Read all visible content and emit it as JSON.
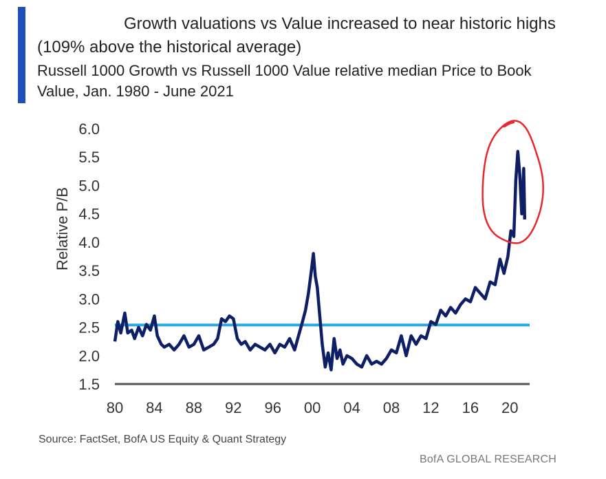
{
  "header": {
    "title": "Growth valuations vs Value increased to near historic highs (109% above the historical average)",
    "subtitle": "Russell 1000 Growth vs Russell 1000 Value relative median Price to Book Value, Jan. 1980 - June 2021"
  },
  "footer": {
    "source": "Source: FactSet, BofA US Equity & Quant Strategy",
    "brand": "BofA GLOBAL RESEARCH"
  },
  "colors": {
    "accent_bar": "#1f4fb8",
    "series_line": "#0f1f66",
    "average_line": "#29a9e0",
    "axis_line": "#555555",
    "annotation_circle": "#e8262b"
  },
  "chart_data": {
    "type": "line",
    "title": "",
    "xlabel": "",
    "ylabel": "Relative P/B",
    "xlim": [
      1980,
      2022
    ],
    "ylim": [
      1.5,
      6.0
    ],
    "x_ticks": [
      1980,
      1984,
      1988,
      1992,
      1996,
      2000,
      2004,
      2008,
      2012,
      2016,
      2020
    ],
    "x_tick_labels": [
      "80",
      "84",
      "88",
      "92",
      "96",
      "00",
      "04",
      "08",
      "12",
      "16",
      "20"
    ],
    "y_ticks": [
      1.5,
      2.0,
      2.5,
      3.0,
      3.5,
      4.0,
      4.5,
      5.0,
      5.5,
      6.0
    ],
    "y_tick_labels": [
      "1.5",
      "2.0",
      "2.5",
      "3.0",
      "3.5",
      "4.0",
      "4.5",
      "5.0",
      "5.5",
      "6.0"
    ],
    "grid": false,
    "legend": "none",
    "reference_line": {
      "y": 2.54
    },
    "annotation": {
      "type": "circle",
      "x_range": [
        2017.2,
        2023.3
      ],
      "y_range": [
        3.95,
        6.1
      ]
    },
    "series": [
      {
        "x": [
          1980.0,
          1980.3,
          1980.6,
          1981.0,
          1981.3,
          1981.7,
          1982.0,
          1982.4,
          1982.8,
          1983.2,
          1983.6,
          1984.0,
          1984.3,
          1984.7,
          1985.0,
          1985.5,
          1986.0,
          1986.5,
          1987.0,
          1987.5,
          1988.0,
          1988.5,
          1989.0,
          1989.5,
          1990.0,
          1990.4,
          1990.8,
          1991.2,
          1991.6,
          1992.0,
          1992.4,
          1992.8,
          1993.2,
          1993.7,
          1994.2,
          1994.7,
          1995.2,
          1995.7,
          1996.2,
          1996.7,
          1997.2,
          1997.7,
          1998.2,
          1998.6,
          1999.0,
          1999.3,
          1999.6,
          1999.9,
          2000.1,
          2000.3,
          2000.5,
          2000.8,
          2001.0,
          2001.3,
          2001.6,
          2001.9,
          2002.2,
          2002.5,
          2002.8,
          2003.1,
          2003.5,
          2004.0,
          2004.5,
          2005.0,
          2005.5,
          2006.0,
          2006.5,
          2007.0,
          2007.5,
          2008.0,
          2008.5,
          2009.0,
          2009.5,
          2010.0,
          2010.5,
          2011.0,
          2011.5,
          2012.0,
          2012.5,
          2013.0,
          2013.5,
          2014.0,
          2014.5,
          2015.0,
          2015.5,
          2016.0,
          2016.5,
          2017.0,
          2017.5,
          2018.0,
          2018.5,
          2019.0,
          2019.4,
          2019.8,
          2020.1,
          2020.4,
          2020.6,
          2020.8,
          2021.0,
          2021.2,
          2021.4,
          2021.5
        ],
        "values": [
          2.25,
          2.6,
          2.4,
          2.75,
          2.4,
          2.45,
          2.3,
          2.5,
          2.35,
          2.55,
          2.45,
          2.7,
          2.35,
          2.2,
          2.15,
          2.2,
          2.1,
          2.2,
          2.35,
          2.15,
          2.2,
          2.35,
          2.1,
          2.15,
          2.2,
          2.3,
          2.65,
          2.6,
          2.7,
          2.65,
          2.3,
          2.2,
          2.25,
          2.1,
          2.2,
          2.15,
          2.1,
          2.2,
          2.05,
          2.2,
          2.15,
          2.3,
          2.1,
          2.35,
          2.6,
          2.8,
          3.1,
          3.5,
          3.8,
          3.4,
          3.2,
          2.6,
          2.2,
          1.8,
          2.05,
          1.75,
          2.3,
          1.95,
          2.1,
          1.85,
          2.0,
          1.95,
          1.85,
          1.8,
          2.0,
          1.85,
          1.9,
          1.85,
          1.95,
          2.1,
          2.05,
          2.35,
          2.0,
          2.35,
          2.2,
          2.35,
          2.3,
          2.6,
          2.55,
          2.8,
          2.7,
          2.85,
          2.75,
          2.9,
          3.0,
          2.95,
          3.2,
          3.1,
          3.0,
          3.3,
          3.25,
          3.7,
          3.45,
          3.75,
          4.2,
          4.1,
          5.1,
          5.6,
          5.2,
          4.5,
          5.3,
          4.4
        ]
      }
    ]
  }
}
